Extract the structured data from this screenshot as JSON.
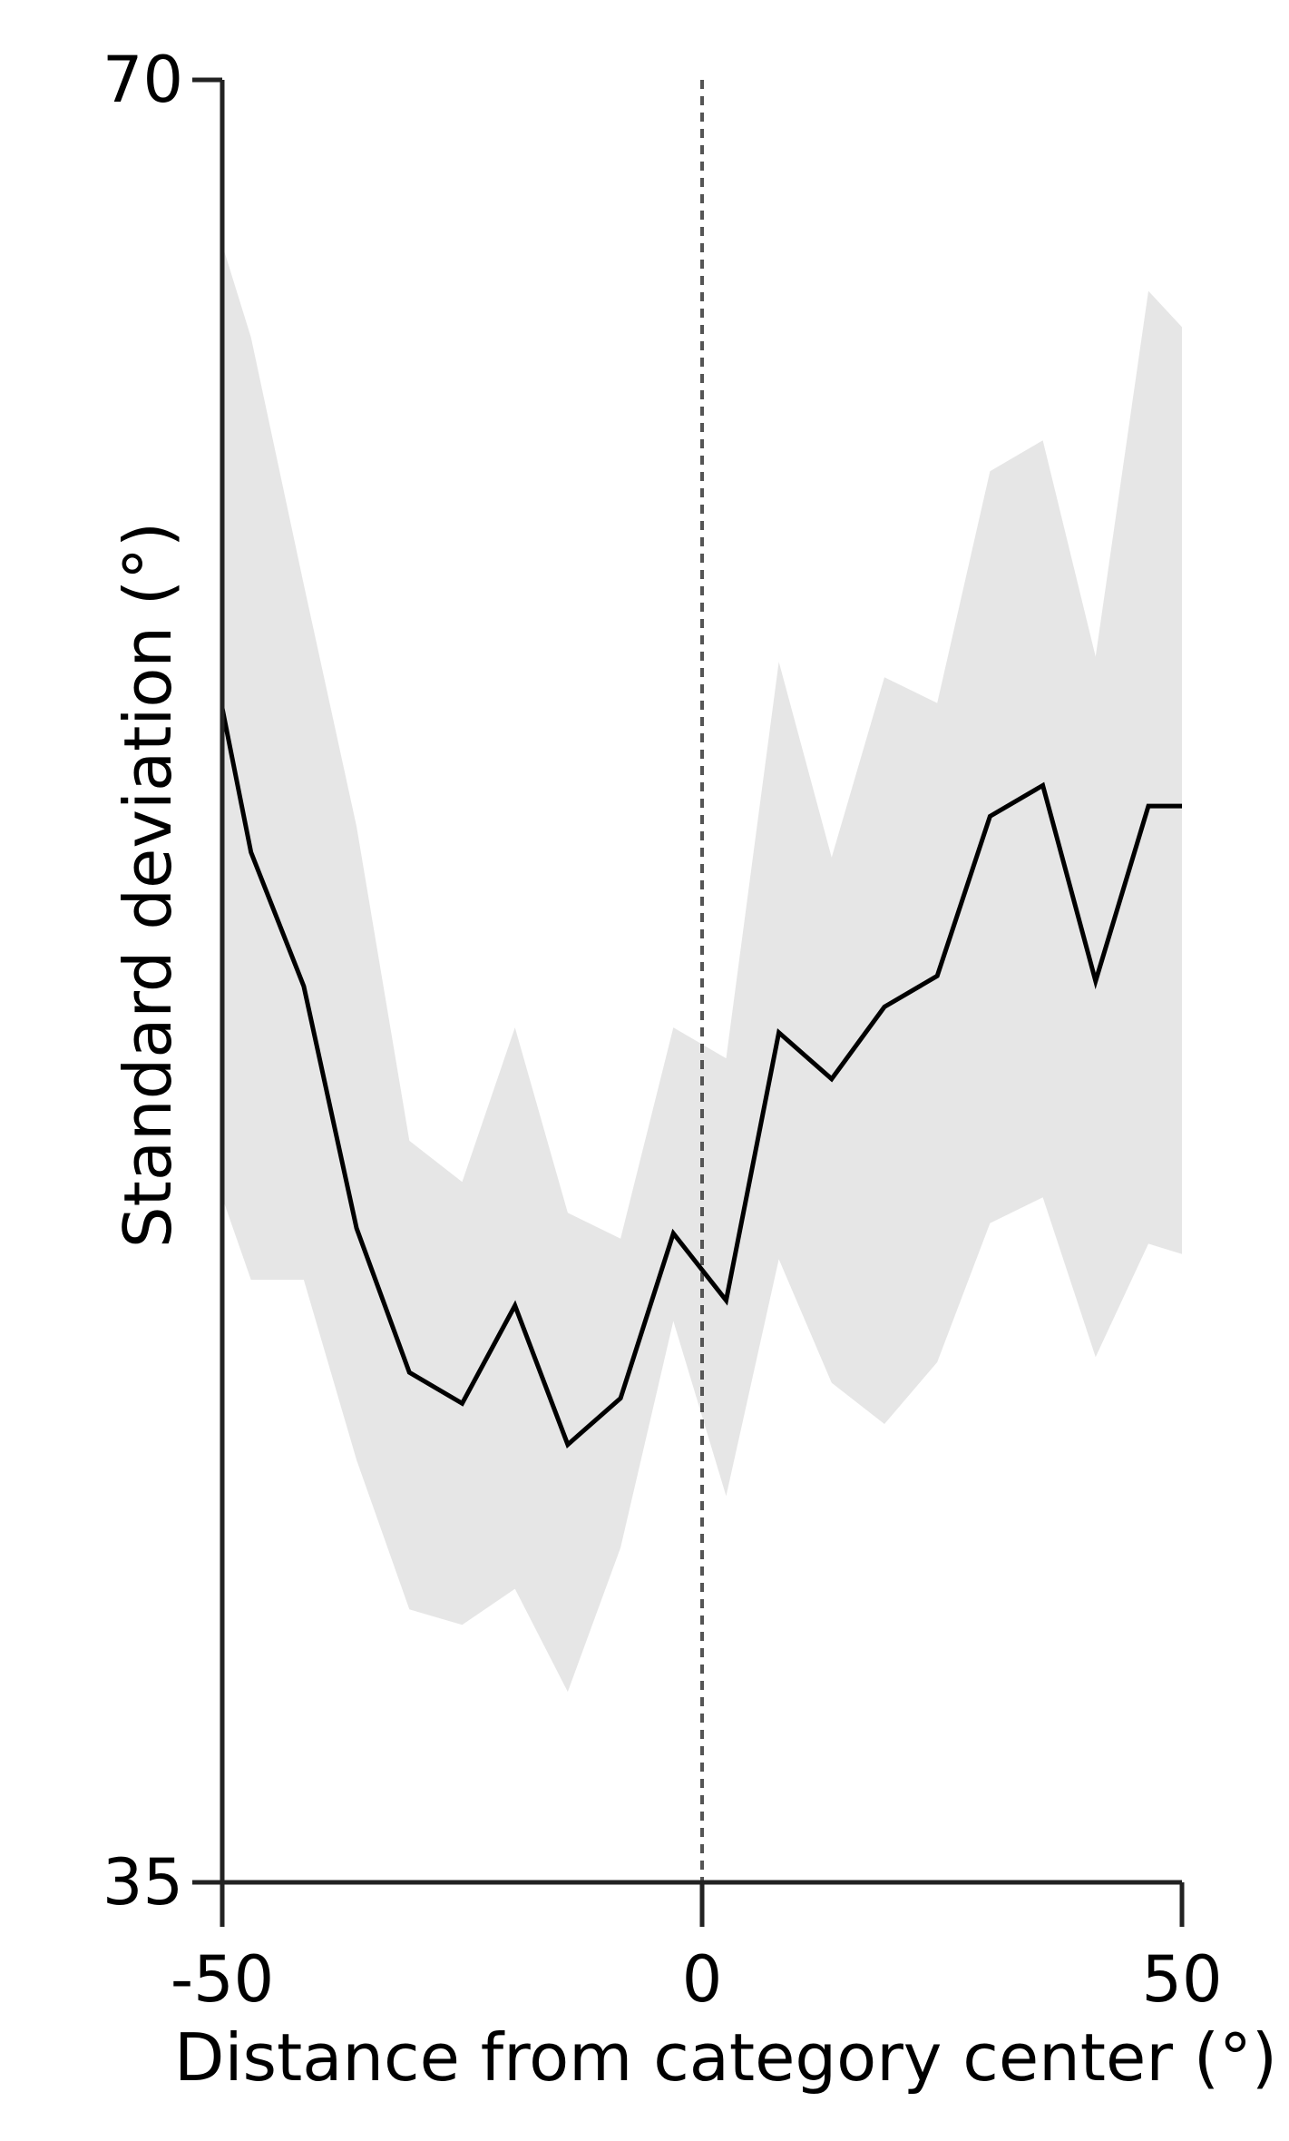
{
  "chart_data": {
    "type": "line",
    "title": "",
    "xlabel": "Distance from category center (°)",
    "ylabel": "Standard deviation (°)",
    "xlim": [
      -50,
      50
    ],
    "ylim": [
      35,
      70
    ],
    "x_ticks": [
      "-50",
      "0",
      "50"
    ],
    "y_ticks": [
      "35",
      "70"
    ],
    "grid": false,
    "legend": "none",
    "reference_line": {
      "x": 0,
      "style": "dashed"
    },
    "x": [
      -50,
      -47,
      -41.5,
      -36,
      -30.5,
      -25,
      -19.5,
      -14,
      -8.5,
      -3,
      2.5,
      8,
      13.5,
      19,
      24.5,
      30,
      35.5,
      41,
      46.5,
      50
    ],
    "mean": [
      57.8,
      55.0,
      52.4,
      47.7,
      44.9,
      44.3,
      46.2,
      43.5,
      44.4,
      47.6,
      46.3,
      51.5,
      50.6,
      52.0,
      52.6,
      55.7,
      56.3,
      52.5,
      55.9,
      55.9
    ],
    "upper": [
      66.8,
      65.0,
      60.2,
      55.5,
      49.4,
      48.6,
      51.6,
      48.0,
      47.5,
      51.6,
      51.0,
      58.7,
      54.9,
      58.4,
      57.9,
      62.4,
      63.0,
      58.8,
      65.9,
      65.2
    ],
    "lower": [
      48.3,
      46.7,
      46.7,
      43.2,
      40.3,
      40.0,
      40.7,
      38.7,
      41.5,
      45.9,
      42.5,
      47.1,
      44.7,
      43.9,
      45.1,
      47.8,
      48.3,
      45.2,
      47.4,
      47.2
    ],
    "colors": {
      "line": "#000000",
      "band": "#e6e6e6",
      "axis": "#222222",
      "reference": "#555555"
    }
  }
}
